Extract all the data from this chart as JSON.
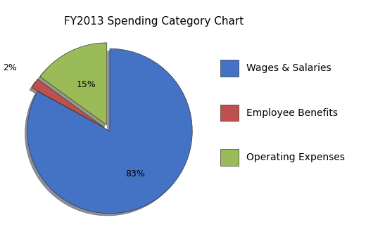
{
  "title": "FY2013 Spending Category Chart",
  "labels": [
    "Wages & Salaries",
    "Employee Benefits",
    "Operating Expenses"
  ],
  "values": [
    83,
    2,
    15
  ],
  "colors": [
    "#4472C4",
    "#C0504D",
    "#9BBB59"
  ],
  "explode": [
    0.0,
    0.08,
    0.08
  ],
  "pct_labels": [
    "83%",
    "2%",
    "15%"
  ],
  "background_color": "#FFFFFF",
  "title_fontsize": 11,
  "legend_fontsize": 10,
  "pct_fontsize": 9
}
